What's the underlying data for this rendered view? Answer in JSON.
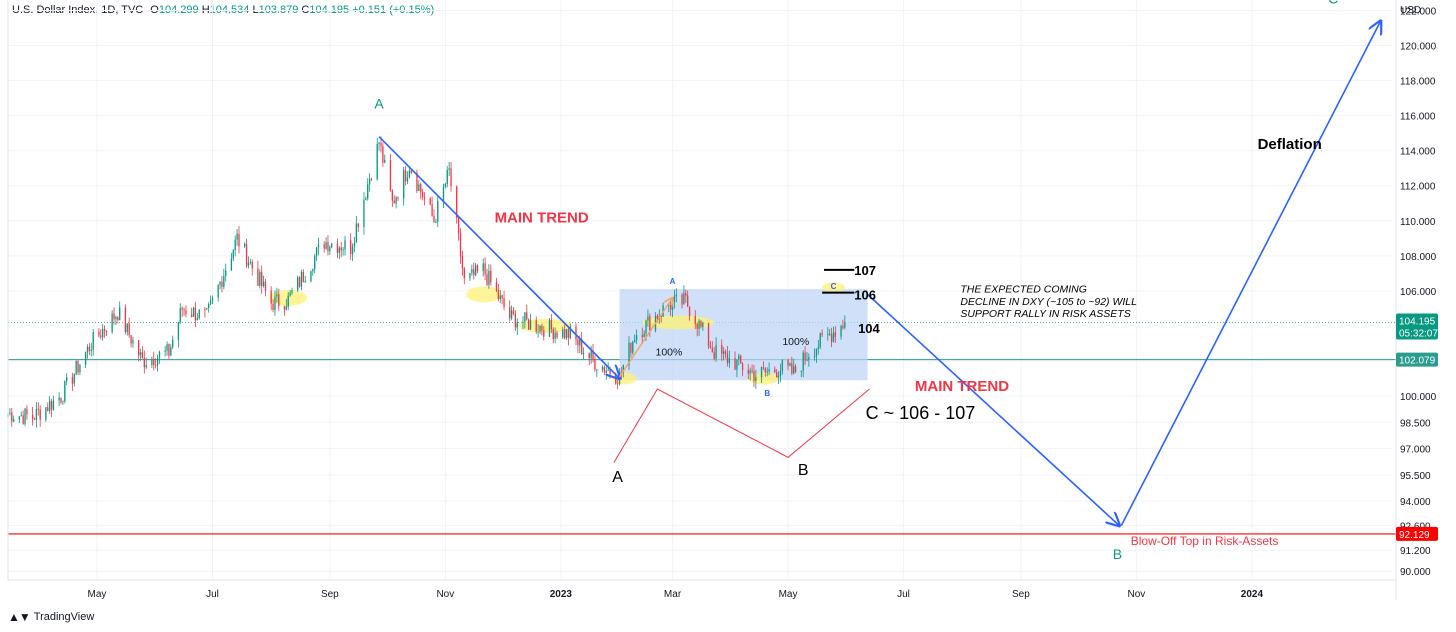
{
  "header": {
    "symbol": "U.S. Dollar Index, 1D, TVC",
    "open_label": "O",
    "open": "104.299",
    "high_label": "H",
    "high": "104.534",
    "low_label": "L",
    "low": "103.879",
    "close_label": "C",
    "close": "104.195",
    "change": "+0.151 (+0.15%)"
  },
  "brand": "TradingView",
  "colors": {
    "up": "#089981",
    "down": "#f23645",
    "blue_arrow": "#2962ff",
    "teal_line": "#2a9d8f",
    "red_line": "#ff0000",
    "box_fill": "#bbd3f5",
    "highlight": "#fff176",
    "wave_line": "#f23645",
    "orange": "#f7a25b"
  },
  "chart_data": {
    "type": "candlestick",
    "title": "U.S. Dollar Index, 1D, TVC",
    "ylabel": "USD",
    "ylim": [
      89.5,
      122.6
    ],
    "yticks": [
      90,
      91.2,
      92.6,
      94,
      95.5,
      97,
      98.5,
      100,
      102,
      104,
      106,
      108,
      110,
      112,
      114,
      116,
      118,
      120,
      122
    ],
    "ytick_labels": [
      "90.000",
      "91.200",
      "92.600",
      "94.000",
      "95.500",
      "97.000",
      "98.500",
      "100.000",
      "102.000",
      "104.000",
      "106.000",
      "108.000",
      "110.000",
      "112.000",
      "114.000",
      "116.000",
      "118.000",
      "120.000",
      "122.000"
    ],
    "xlim": [
      "2022-03-15",
      "2024-03-15"
    ],
    "xticks": [
      {
        "date": "2022-05-01",
        "label": "May",
        "bold": false
      },
      {
        "date": "2022-07-01",
        "label": "Jul",
        "bold": false
      },
      {
        "date": "2022-09-01",
        "label": "Sep",
        "bold": false
      },
      {
        "date": "2022-11-01",
        "label": "Nov",
        "bold": false
      },
      {
        "date": "2023-01-01",
        "label": "2023",
        "bold": true
      },
      {
        "date": "2023-03-01",
        "label": "Mar",
        "bold": false
      },
      {
        "date": "2023-05-01",
        "label": "May",
        "bold": false
      },
      {
        "date": "2023-07-01",
        "label": "Jul",
        "bold": false
      },
      {
        "date": "2023-09-01",
        "label": "Sep",
        "bold": false
      },
      {
        "date": "2023-11-01",
        "label": "Nov",
        "bold": false
      },
      {
        "date": "2024-01-01",
        "label": "2024",
        "bold": true
      }
    ],
    "close_anchors": [
      {
        "x": "2022-03-15",
        "y": 99.0
      },
      {
        "x": "2022-03-28",
        "y": 98.8
      },
      {
        "x": "2022-04-12",
        "y": 100.0
      },
      {
        "x": "2022-04-28",
        "y": 103.0
      },
      {
        "x": "2022-05-12",
        "y": 104.8
      },
      {
        "x": "2022-05-25",
        "y": 102.0
      },
      {
        "x": "2022-06-08",
        "y": 102.5
      },
      {
        "x": "2022-06-15",
        "y": 105.0
      },
      {
        "x": "2022-06-28",
        "y": 104.5
      },
      {
        "x": "2022-07-14",
        "y": 109.0
      },
      {
        "x": "2022-08-01",
        "y": 105.3
      },
      {
        "x": "2022-08-10",
        "y": 105.5
      },
      {
        "x": "2022-08-29",
        "y": 108.8
      },
      {
        "x": "2022-09-12",
        "y": 108.5
      },
      {
        "x": "2022-09-27",
        "y": 114.5
      },
      {
        "x": "2022-10-04",
        "y": 111.0
      },
      {
        "x": "2022-10-13",
        "y": 113.2
      },
      {
        "x": "2022-10-26",
        "y": 110.0
      },
      {
        "x": "2022-11-03",
        "y": 112.8
      },
      {
        "x": "2022-11-11",
        "y": 106.5
      },
      {
        "x": "2022-11-21",
        "y": 107.2
      },
      {
        "x": "2022-12-05",
        "y": 104.5
      },
      {
        "x": "2022-12-20",
        "y": 104.0
      },
      {
        "x": "2023-01-06",
        "y": 103.5
      },
      {
        "x": "2023-01-18",
        "y": 102.0
      },
      {
        "x": "2023-02-01",
        "y": 101.1
      },
      {
        "x": "2023-02-09",
        "y": 103.5
      },
      {
        "x": "2023-02-27",
        "y": 105.2
      },
      {
        "x": "2023-03-08",
        "y": 105.4
      },
      {
        "x": "2023-03-23",
        "y": 102.5
      },
      {
        "x": "2023-04-05",
        "y": 101.8
      },
      {
        "x": "2023-04-14",
        "y": 101.2
      },
      {
        "x": "2023-04-28",
        "y": 101.6
      },
      {
        "x": "2023-05-04",
        "y": 101.3
      },
      {
        "x": "2023-05-12",
        "y": 102.5
      },
      {
        "x": "2023-05-23",
        "y": 103.5
      },
      {
        "x": "2023-05-31",
        "y": 104.195
      }
    ],
    "last_price": 104.195,
    "last_price_label": "104.195",
    "countdown_label": "05:32:07",
    "teal_level": 102.079,
    "teal_level_label": "102.079",
    "red_level": 92.129,
    "red_level_label": "92.129"
  },
  "annotations": {
    "main_trend_1": "MAIN TREND",
    "main_trend_2": "MAIN TREND",
    "deflation": "Deflation",
    "blowoff": "Blow-Off Top in Risk-Assets",
    "expected_line1": "THE EXPECTED COMING",
    "expected_line2": "DECLINE IN DXY (~105 to ~92) WILL",
    "expected_line3": "SUPPORT RALLY IN RISK ASSETS",
    "lvl_107": "107",
    "lvl_106": "106",
    "lvl_104": "104",
    "pct_1": "100%",
    "pct_2": "100%",
    "wave_a_small": "A",
    "wave_b_small": "B",
    "wave_c_small": "C",
    "big_a": "A",
    "big_b": "B",
    "c_target": "C ~ 106 - 107",
    "major_a": "A",
    "major_b": "B",
    "major_c": "C"
  }
}
